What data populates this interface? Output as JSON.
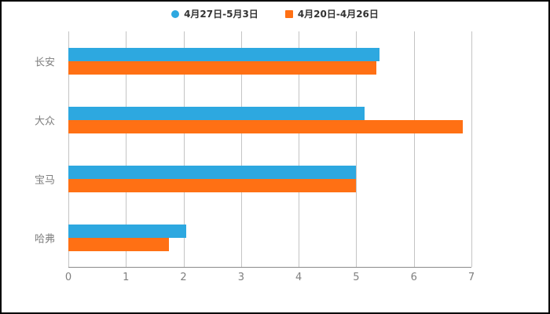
{
  "legend": {
    "items": [
      {
        "label": "4月27日-5月3日",
        "color": "#2da8e0",
        "shape": "circle"
      },
      {
        "label": "4月20日-4月26日",
        "color": "#ff7014",
        "shape": "square"
      }
    ]
  },
  "chart_data": {
    "type": "bar",
    "orientation": "horizontal",
    "title": "",
    "xlabel": "",
    "ylabel": "",
    "categories": [
      "长安",
      "大众",
      "宝马",
      "哈弗"
    ],
    "series": [
      {
        "name": "4月27日-5月3日",
        "color": "#2da8e0",
        "values": [
          5.4,
          5.15,
          5.0,
          2.05
        ]
      },
      {
        "name": "4月20日-4月26日",
        "color": "#ff7014",
        "values": [
          5.35,
          6.85,
          5.0,
          1.75
        ]
      }
    ],
    "xticks": [
      0,
      1,
      2,
      3,
      4,
      5,
      6,
      7
    ],
    "xlim": [
      0,
      7
    ],
    "grid": true,
    "legend_position": "top"
  },
  "colors": {
    "background": "#ffffff",
    "grid": "#c4c4c4",
    "axis_line": "#8a8a8a",
    "tick_label": "#7f7f7f",
    "legend_text": "#333333"
  }
}
